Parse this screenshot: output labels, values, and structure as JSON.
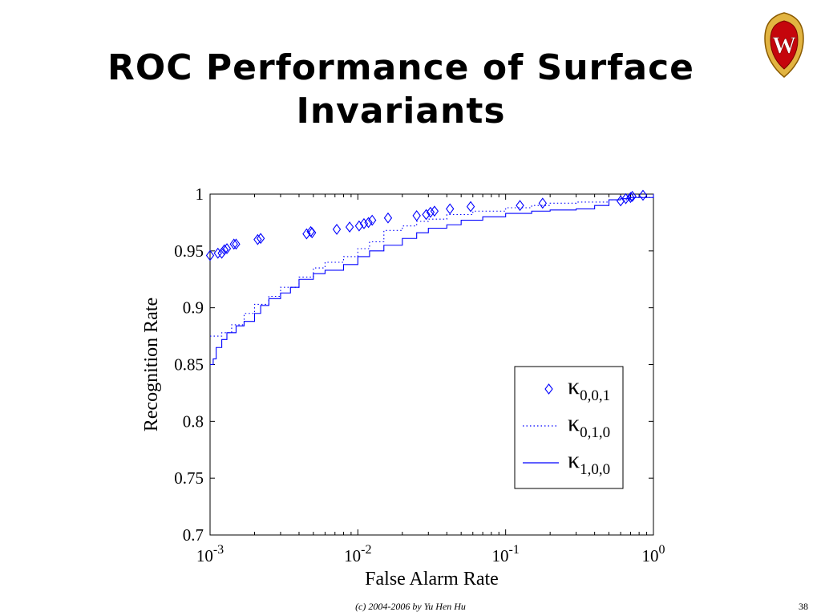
{
  "slide": {
    "title_line1": "ROC Performance of Surface",
    "title_line2": "Invariants",
    "footer": "(c) 2004-2006 by Yu Hen Hu",
    "page_number": "38",
    "logo_letter": "W",
    "colors": {
      "crest_gold": "#e2b441",
      "crest_red": "#c5050c",
      "line_blue": "#0000ff"
    }
  },
  "chart_data": {
    "type": "line",
    "xscale": "log",
    "xlim": [
      0.001,
      1
    ],
    "ylim": [
      0.7,
      1
    ],
    "xlabel": "False Alarm Rate",
    "ylabel": "Recognition Rate",
    "x_ticks": [
      {
        "value": 0.001,
        "base": "10",
        "exp": "-3"
      },
      {
        "value": 0.01,
        "base": "10",
        "exp": "-2"
      },
      {
        "value": 0.1,
        "base": "10",
        "exp": "-1"
      },
      {
        "value": 1,
        "base": "10",
        "exp": "0"
      }
    ],
    "y_ticks": [
      {
        "value": 0.7,
        "label": "0.7"
      },
      {
        "value": 0.75,
        "label": "0.75"
      },
      {
        "value": 0.8,
        "label": "0.8"
      },
      {
        "value": 0.85,
        "label": "0.85"
      },
      {
        "value": 0.9,
        "label": "0.9"
      },
      {
        "value": 0.95,
        "label": "0.95"
      },
      {
        "value": 1,
        "label": "1"
      }
    ],
    "legend_position": "lower-right",
    "series": [
      {
        "name": "κ0,0,1",
        "legend_symbol": "κ",
        "legend_sub": "0,0,1",
        "style": "markers",
        "marker": "diamond",
        "x": [
          0.001,
          0.00113,
          0.0012,
          0.00125,
          0.0013,
          0.00145,
          0.0015,
          0.0021,
          0.0022,
          0.0045,
          0.0048,
          0.0049,
          0.0072,
          0.0088,
          0.0102,
          0.011,
          0.0118,
          0.0125,
          0.016,
          0.025,
          0.029,
          0.031,
          0.033,
          0.042,
          0.058,
          0.125,
          0.178,
          0.6,
          0.65,
          0.7,
          0.72,
          0.85
        ],
        "y": [
          0.946,
          0.948,
          0.948,
          0.951,
          0.952,
          0.956,
          0.956,
          0.96,
          0.961,
          0.965,
          0.967,
          0.966,
          0.969,
          0.971,
          0.972,
          0.974,
          0.975,
          0.977,
          0.979,
          0.981,
          0.982,
          0.984,
          0.985,
          0.987,
          0.989,
          0.99,
          0.992,
          0.994,
          0.996,
          0.997,
          0.998,
          0.999
        ]
      },
      {
        "name": "κ0,1,0",
        "legend_symbol": "κ",
        "legend_sub": "0,1,0",
        "style": "dotted",
        "x": [
          0.001,
          0.0012,
          0.0014,
          0.0017,
          0.002,
          0.0025,
          0.003,
          0.004,
          0.005,
          0.006,
          0.008,
          0.01,
          0.012,
          0.015,
          0.02,
          0.025,
          0.03,
          0.04,
          0.06,
          0.1,
          0.15,
          0.2,
          0.3,
          0.5,
          0.7,
          1
        ],
        "y": [
          0.875,
          0.878,
          0.885,
          0.895,
          0.903,
          0.91,
          0.918,
          0.927,
          0.935,
          0.94,
          0.945,
          0.952,
          0.958,
          0.968,
          0.972,
          0.976,
          0.978,
          0.982,
          0.985,
          0.988,
          0.99,
          0.992,
          0.993,
          0.995,
          0.997,
          1
        ]
      },
      {
        "name": "κ1,0,0",
        "legend_symbol": "κ",
        "legend_sub": "1,0,0",
        "style": "solid",
        "x": [
          0.001,
          0.00105,
          0.0011,
          0.0012,
          0.0013,
          0.0015,
          0.0017,
          0.002,
          0.0022,
          0.0025,
          0.003,
          0.0035,
          0.004,
          0.005,
          0.006,
          0.008,
          0.01,
          0.012,
          0.015,
          0.02,
          0.025,
          0.03,
          0.04,
          0.05,
          0.07,
          0.1,
          0.15,
          0.2,
          0.3,
          0.4,
          0.5,
          0.6,
          0.7,
          1
        ],
        "y": [
          0.85,
          0.855,
          0.865,
          0.872,
          0.878,
          0.884,
          0.888,
          0.895,
          0.902,
          0.908,
          0.913,
          0.918,
          0.925,
          0.93,
          0.933,
          0.938,
          0.945,
          0.95,
          0.955,
          0.961,
          0.966,
          0.97,
          0.973,
          0.977,
          0.98,
          0.983,
          0.985,
          0.986,
          0.987,
          0.99,
          0.995,
          0.996,
          0.997,
          0.999
        ]
      }
    ]
  }
}
